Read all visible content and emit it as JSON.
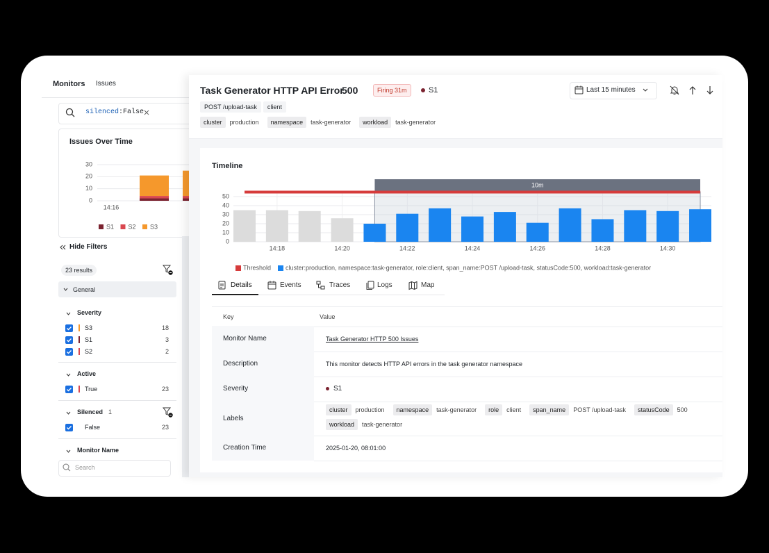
{
  "nav": {
    "tabs": [
      "Monitors",
      "Issues"
    ]
  },
  "search": {
    "key": "silenced",
    "value": ":False"
  },
  "issues_chart": {
    "type": "bar",
    "title": "Issues Over Time",
    "categories": [
      "14:16",
      null,
      null
    ],
    "series": [
      {
        "name": "S1",
        "color": "#7b2330",
        "values": [
          0,
          2,
          2
        ]
      },
      {
        "name": "S2",
        "color": "#d9474f",
        "values": [
          0,
          2,
          2
        ]
      },
      {
        "name": "S3",
        "color": "#f5982c",
        "values": [
          0,
          17,
          21
        ]
      }
    ],
    "ylim": [
      0,
      30
    ],
    "yticks": [
      0,
      10,
      20,
      30
    ]
  },
  "sidebar": {
    "hide_filters": "Hide Filters",
    "results": "23 results",
    "general": "General",
    "groups": [
      {
        "title": "Severity",
        "items": [
          {
            "label": "S3",
            "color": "#f5982c",
            "count": 18
          },
          {
            "label": "S1",
            "color": "#7b2330",
            "count": 3
          },
          {
            "label": "S2",
            "color": "#d9474f",
            "count": 2
          }
        ]
      },
      {
        "title": "Active",
        "items": [
          {
            "label": "True",
            "color": "#d9474f",
            "count": 23
          }
        ]
      },
      {
        "title": "Silenced",
        "badge": 1,
        "items": [
          {
            "label": "False",
            "count": 23
          }
        ]
      },
      {
        "title": "Monitor Name",
        "search_placeholder": "Search"
      }
    ]
  },
  "detail": {
    "title": "Task Generator HTTP API Error",
    "code": "500",
    "status": "Firing 31m",
    "severity": "S1",
    "time_range": "Last 15 minutes",
    "tags": [
      "POST /upload-task",
      "client"
    ],
    "labels": [
      {
        "key": "cluster",
        "value": "production"
      },
      {
        "key": "namespace",
        "value": "task-generator"
      },
      {
        "key": "workload",
        "value": "task-generator"
      }
    ]
  },
  "timeline": {
    "type": "bar",
    "title": "Timeline",
    "categories": [
      null,
      "14:18",
      null,
      "14:20",
      null,
      "14:22",
      null,
      "14:24",
      null,
      "14:26",
      null,
      "14:28",
      null,
      "14:30",
      null
    ],
    "series": [
      {
        "name": "cluster:production, namespace:task-generator, role:client, span_name:POST /upload-task, statusCode:500, workload:task-generator",
        "color": "#1a85f0",
        "values": [
          35,
          35,
          34,
          26,
          20,
          31,
          37,
          28,
          33,
          21,
          37,
          25,
          35,
          34,
          36
        ]
      }
    ],
    "bar_colors": [
      "#dcdcdc",
      "#dcdcdc",
      "#dcdcdc",
      "#dcdcdc",
      "#1a85f0",
      "#1a85f0",
      "#1a85f0",
      "#1a85f0",
      "#1a85f0",
      "#1a85f0",
      "#1a85f0",
      "#1a85f0",
      "#1a85f0",
      "#1a85f0",
      "#1a85f0"
    ],
    "window": {
      "label": "10m"
    },
    "threshold": {
      "name": "Threshold",
      "value": 55,
      "color": "#d63b3b"
    },
    "ylim": [
      0,
      56
    ],
    "yticks": [
      0,
      10,
      20,
      30,
      40,
      50
    ],
    "grid": true
  },
  "tabs": [
    "Details",
    "Events",
    "Traces",
    "Logs",
    "Map"
  ],
  "table": {
    "columns": [
      "Key",
      "Value"
    ],
    "rows": [
      {
        "key": "Monitor Name",
        "value": "Task Generator HTTP 500 Issues"
      },
      {
        "key": "Description",
        "value": "This monitor detects HTTP API errors in the task generator namespace"
      },
      {
        "key": "Severity",
        "value": "S1"
      },
      {
        "key": "Labels",
        "labels": [
          {
            "key": "cluster",
            "value": "production"
          },
          {
            "key": "namespace",
            "value": "task-generator"
          },
          {
            "key": "role",
            "value": "client"
          },
          {
            "key": "span_name",
            "value": "POST /upload-task"
          },
          {
            "key": "statusCode",
            "value": "500"
          },
          {
            "key": "workload",
            "value": "task-generator"
          }
        ]
      },
      {
        "key": "Creation Time",
        "value": "2025-01-20, 08:01:00"
      }
    ]
  }
}
